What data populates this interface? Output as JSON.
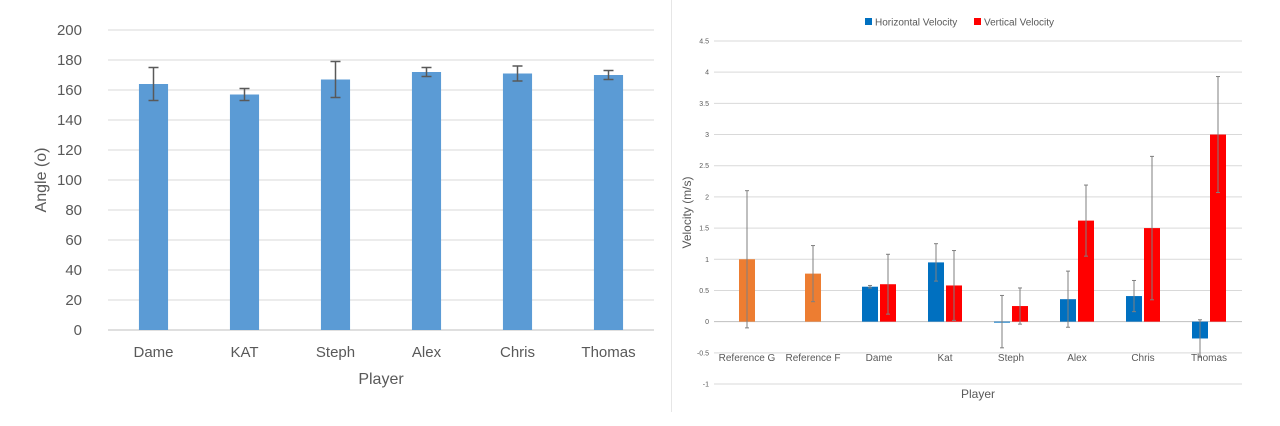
{
  "chart_data": [
    {
      "type": "bar",
      "title": "",
      "xlabel": "Player",
      "ylabel": "Angle (o)",
      "ylim": [
        0,
        200
      ],
      "ytick_step": 20,
      "grid": true,
      "legend": "none",
      "colors": {
        "bar": "#5b9bd5",
        "error": "#595959",
        "grid": "#d9d9d9",
        "axis": "#bfbfbf",
        "text": "#595959"
      },
      "categories": [
        "Dame",
        "KAT",
        "Steph",
        "Alex",
        "Chris",
        "Thomas"
      ],
      "series": [
        {
          "values": [
            164,
            157,
            167,
            172,
            171,
            170
          ],
          "error": [
            11,
            4,
            12,
            3,
            5,
            3
          ]
        }
      ]
    },
    {
      "type": "bar",
      "title": "",
      "xlabel": "Player",
      "ylabel": "Velocity (m/s)",
      "ylim": [
        -1,
        4.5
      ],
      "ytick_step": 0.5,
      "grid": true,
      "legend": "top-center",
      "colors": {
        "grid": "#d9d9d9",
        "axis": "#bfbfbf",
        "text": "#595959",
        "error": "#7f7f7f"
      },
      "categories": [
        "Reference G",
        "Reference F",
        "Dame",
        "Kat",
        "Steph",
        "Alex",
        "Chris",
        "Thomas"
      ],
      "reference_color": "#ed7d31",
      "series": [
        {
          "name": "Horizontal Velocity",
          "color": "#0070c0",
          "values": [
            1.0,
            0.77,
            0.56,
            0.95,
            0.0,
            0.36,
            0.41,
            -0.27
          ],
          "error": [
            1.1,
            0.45,
            0.02,
            0.3,
            0.42,
            0.45,
            0.25,
            0.3
          ]
        },
        {
          "name": "Vertical Velocity",
          "color": "#ff0000",
          "values": [
            null,
            null,
            0.6,
            0.58,
            0.25,
            1.62,
            1.5,
            3.0
          ],
          "error": [
            null,
            null,
            0.48,
            0.56,
            0.29,
            0.57,
            1.15,
            0.93
          ]
        }
      ]
    }
  ]
}
